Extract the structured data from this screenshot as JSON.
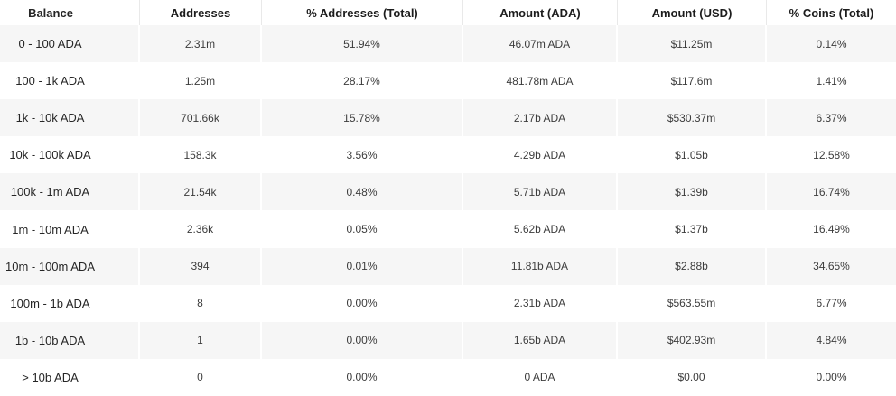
{
  "table": {
    "columns": [
      "Balance",
      "Addresses",
      "% Addresses (Total)",
      "Amount (ADA)",
      "Amount (USD)",
      "% Coins (Total)"
    ],
    "rows": [
      [
        "0 - 100 ADA",
        "2.31m",
        "51.94%",
        "46.07m ADA",
        "$11.25m",
        "0.14%"
      ],
      [
        "100 - 1k ADA",
        "1.25m",
        "28.17%",
        "481.78m ADA",
        "$117.6m",
        "1.41%"
      ],
      [
        "1k - 10k ADA",
        "701.66k",
        "15.78%",
        "2.17b ADA",
        "$530.37m",
        "6.37%"
      ],
      [
        "10k - 100k ADA",
        "158.3k",
        "3.56%",
        "4.29b ADA",
        "$1.05b",
        "12.58%"
      ],
      [
        "100k - 1m ADA",
        "21.54k",
        "0.48%",
        "5.71b ADA",
        "$1.39b",
        "16.74%"
      ],
      [
        "1m - 10m ADA",
        "2.36k",
        "0.05%",
        "5.62b ADA",
        "$1.37b",
        "16.49%"
      ],
      [
        "10m - 100m ADA",
        "394",
        "0.01%",
        "11.81b ADA",
        "$2.88b",
        "34.65%"
      ],
      [
        "100m - 1b ADA",
        "8",
        "0.00%",
        "2.31b ADA",
        "$563.55m",
        "6.77%"
      ],
      [
        "1b - 10b ADA",
        "1",
        "0.00%",
        "1.65b ADA",
        "$402.93m",
        "4.84%"
      ],
      [
        "> 10b ADA",
        "0",
        "0.00%",
        "0 ADA",
        "$0.00",
        "0.00%"
      ]
    ]
  }
}
